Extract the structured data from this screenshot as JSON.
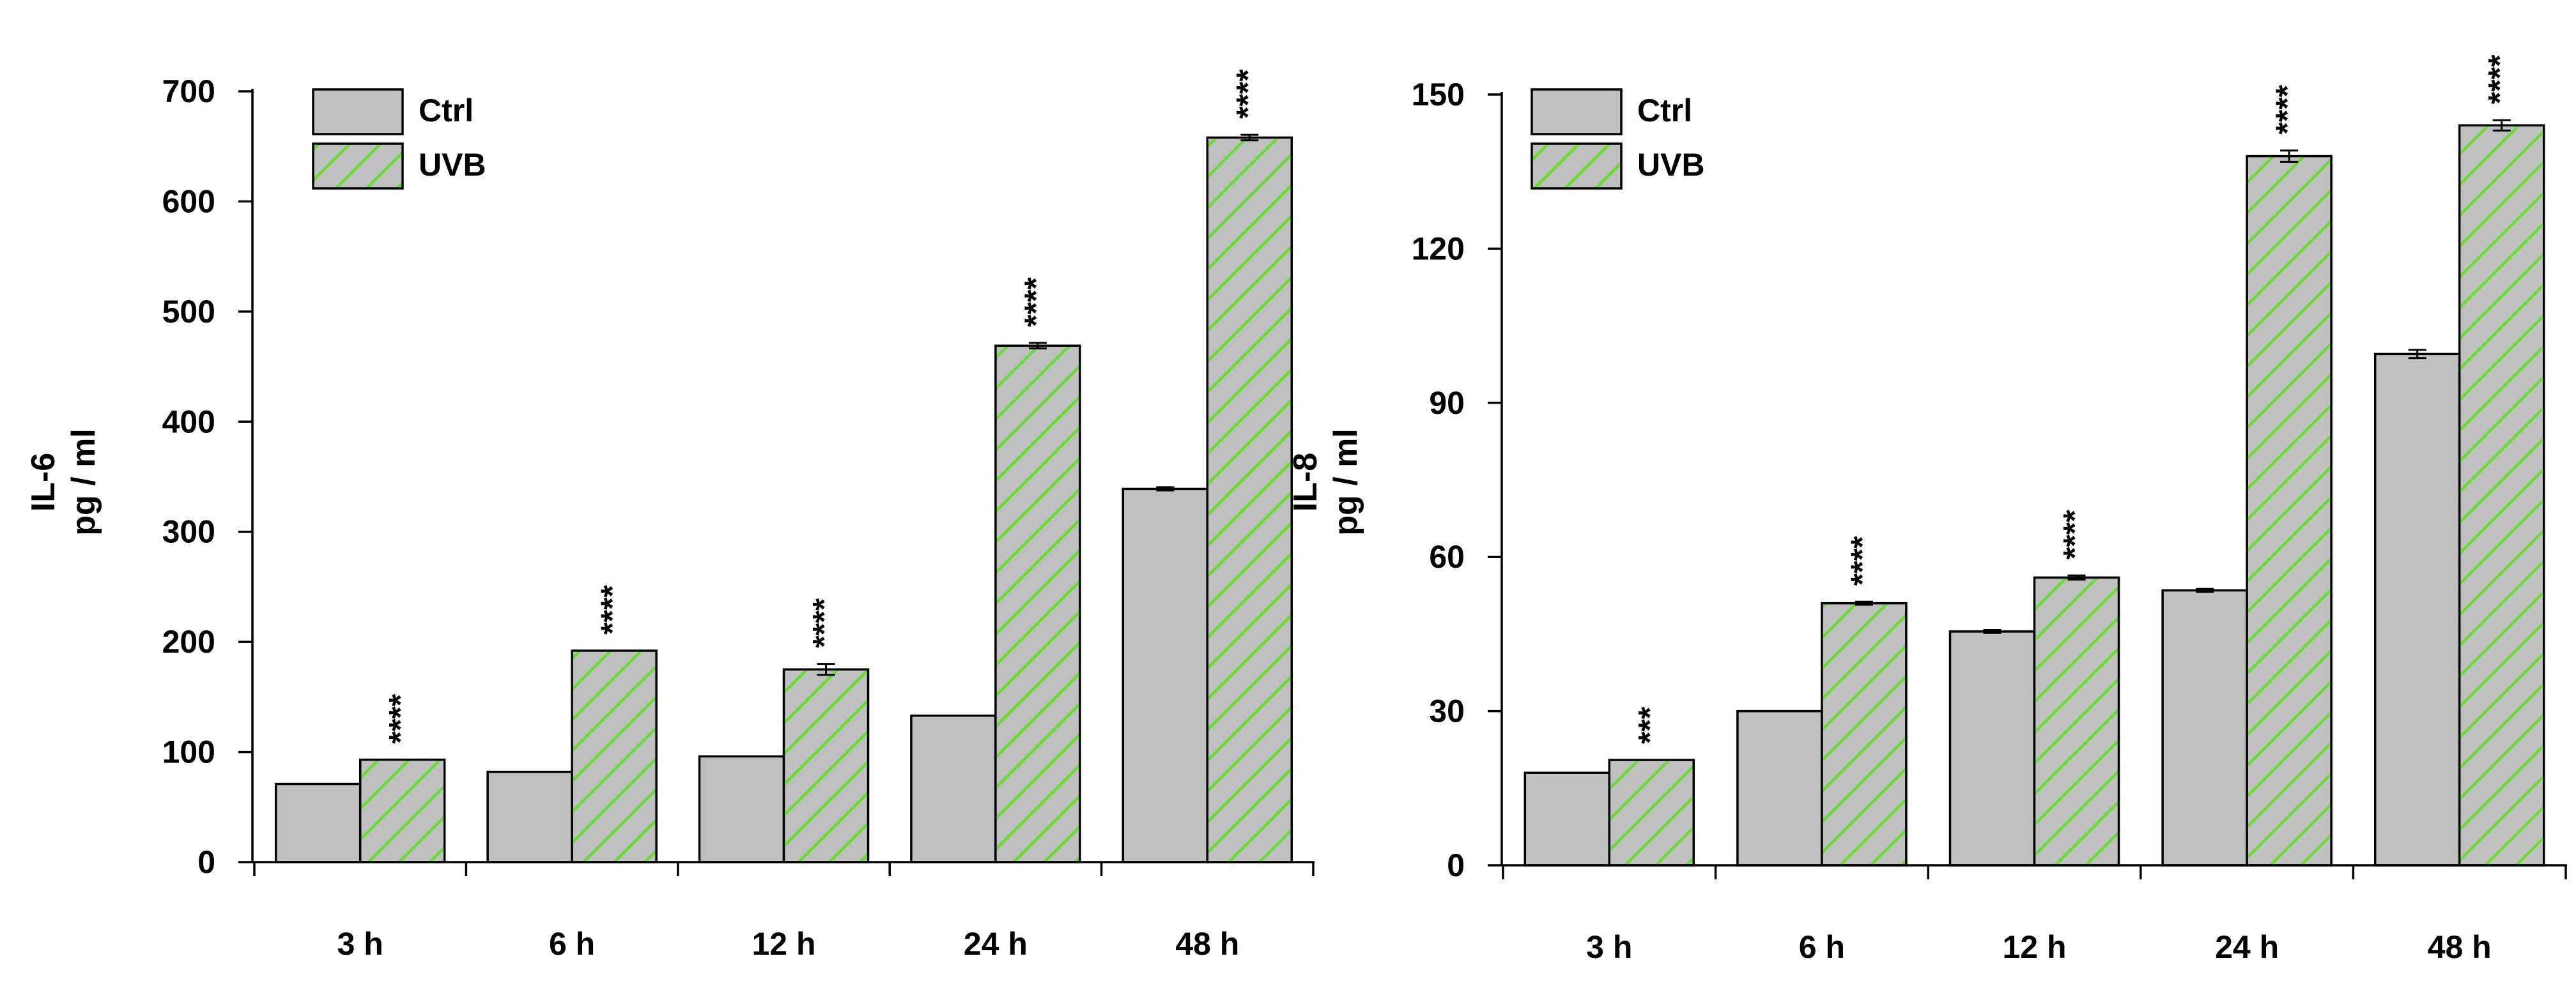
{
  "colors": {
    "ctrl_fill": "#c0c0c0",
    "uvb_fill": "#c0c0c0",
    "uvb_hatch": "#66dd33",
    "stroke": "#000000"
  },
  "chart_data": [
    {
      "type": "bar",
      "ylabel_line1": "IL-6",
      "ylabel_line2": "pg / ml",
      "xlabel": "",
      "categories": [
        "3 h",
        "6 h",
        "12 h",
        "24 h",
        "48 h"
      ],
      "ylim": [
        0,
        700
      ],
      "yticks": [
        0,
        100,
        200,
        300,
        400,
        500,
        600,
        700
      ],
      "legend_position": "top-left",
      "series": [
        {
          "name": "Ctrl",
          "pattern": "solid",
          "values": [
            71,
            82,
            96,
            133,
            339
          ],
          "errors": [
            0,
            0,
            0,
            0,
            1.5
          ]
        },
        {
          "name": "UVB",
          "pattern": "hatched",
          "values": [
            93,
            192,
            175,
            469,
            658
          ],
          "errors": [
            0,
            0,
            5,
            2.5,
            2.5
          ]
        }
      ],
      "annotations": [
        "****",
        "****",
        "****",
        "****",
        "****"
      ]
    },
    {
      "type": "bar",
      "ylabel_line1": "IL-8",
      "ylabel_line2": "pg / ml",
      "xlabel": "",
      "categories": [
        "3 h",
        "6 h",
        "12 h",
        "24 h",
        "48 h"
      ],
      "ylim": [
        0,
        150
      ],
      "yticks": [
        0,
        30,
        60,
        90,
        120,
        150
      ],
      "legend_position": "top-left",
      "series": [
        {
          "name": "Ctrl",
          "pattern": "solid",
          "values": [
            18,
            30,
            45.5,
            53.5,
            99.5
          ],
          "errors": [
            0,
            0,
            0.3,
            0.3,
            0.8
          ]
        },
        {
          "name": "UVB",
          "pattern": "hatched",
          "values": [
            20.5,
            51,
            56,
            138,
            144
          ],
          "errors": [
            0,
            0.3,
            0.4,
            1.1,
            1.0
          ]
        }
      ],
      "annotations": [
        "***",
        "****",
        "****",
        "****",
        "****"
      ]
    }
  ]
}
